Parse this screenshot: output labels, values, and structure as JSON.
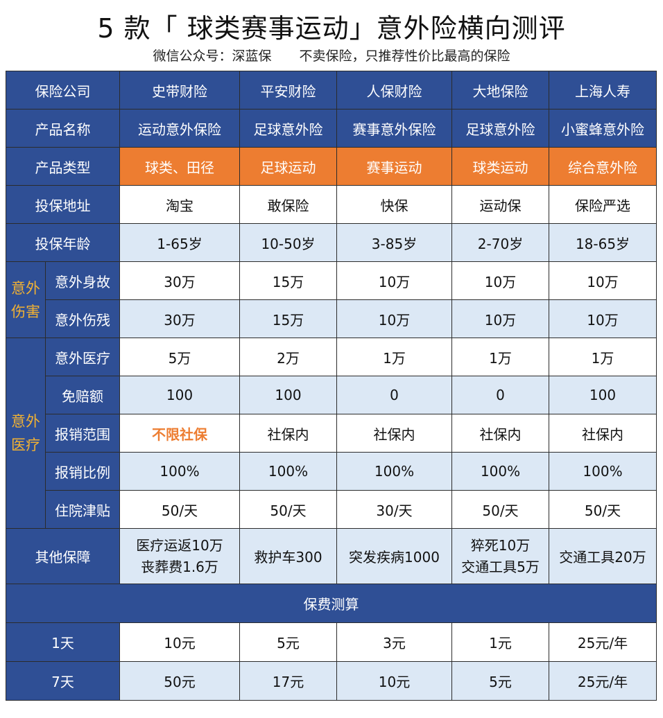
{
  "title": "5 款「 球类赛事运动」意外险横向测评",
  "subtitle": {
    "left": "微信公众号：深蓝保",
    "right": "不卖保险，只推荐性价比最高的保险"
  },
  "companies": {
    "label": "保险公司",
    "values": [
      "史带财险",
      "平安财险",
      "人保财险",
      "大地保险",
      "上海人寿"
    ]
  },
  "products": {
    "label": "产品名称",
    "values": [
      "运动意外保险",
      "足球意外险",
      "赛事意外保险",
      "足球意外险",
      "小蜜蜂意外险"
    ]
  },
  "types": {
    "label": "产品类型",
    "values": [
      "球类、田径",
      "足球运动",
      "赛事运动",
      "球类运动",
      "综合意外险"
    ]
  },
  "platform": {
    "label": "投保地址",
    "values": [
      "淘宝",
      "敢保险",
      "快保",
      "运动保",
      "保险严选"
    ]
  },
  "ages": {
    "label": "投保年龄",
    "values": [
      "1-65岁",
      "10-50岁",
      "3-85岁",
      "2-70岁",
      "18-65岁"
    ]
  },
  "group_injury": {
    "line1": "意外",
    "line2": "伤害"
  },
  "death": {
    "label": "意外身故",
    "values": [
      "30万",
      "15万",
      "10万",
      "10万",
      "10万"
    ]
  },
  "disability": {
    "label": "意外伤残",
    "values": [
      "30万",
      "15万",
      "10万",
      "10万",
      "10万"
    ]
  },
  "group_medical": {
    "line1": "意外",
    "line2": "医疗"
  },
  "medical": {
    "label": "意外医疗",
    "values": [
      "5万",
      "2万",
      "1万",
      "1万",
      "1万"
    ]
  },
  "deductible": {
    "label": "免赔额",
    "values": [
      "100",
      "100",
      "0",
      "0",
      "100"
    ]
  },
  "scope": {
    "label": "报销范围",
    "values": [
      "不限社保",
      "社保内",
      "社保内",
      "社保内",
      "社保内"
    ]
  },
  "ratio": {
    "label": "报销比例",
    "values": [
      "100%",
      "100%",
      "100%",
      "100%",
      "100%"
    ]
  },
  "hospital": {
    "label": "住院津贴",
    "values": [
      "50/天",
      "50/天",
      "30/天",
      "50/天",
      "50/天"
    ]
  },
  "other": {
    "label": "其他保障",
    "c1": {
      "line1": "医疗运返10万",
      "line2": "丧葬费1.6万"
    },
    "c2": "救护车300",
    "c3": "突发疾病1000",
    "c4": {
      "line1": "猝死10万",
      "line2": "交通工具5万"
    },
    "c5": "交通工具20万"
  },
  "premium_header": "保费测算",
  "day1": {
    "label": "1天",
    "values": [
      "10元",
      "5元",
      "3元",
      "1元",
      "25元/年"
    ]
  },
  "day7": {
    "label": "7天",
    "values": [
      "50元",
      "17元",
      "10元",
      "5元",
      "25元/年"
    ]
  },
  "colors": {
    "header_blue": "#2f4f95",
    "row_light": "#dce8f5",
    "accent_orange": "#ed7d31",
    "group_gold": "#f2b233"
  }
}
